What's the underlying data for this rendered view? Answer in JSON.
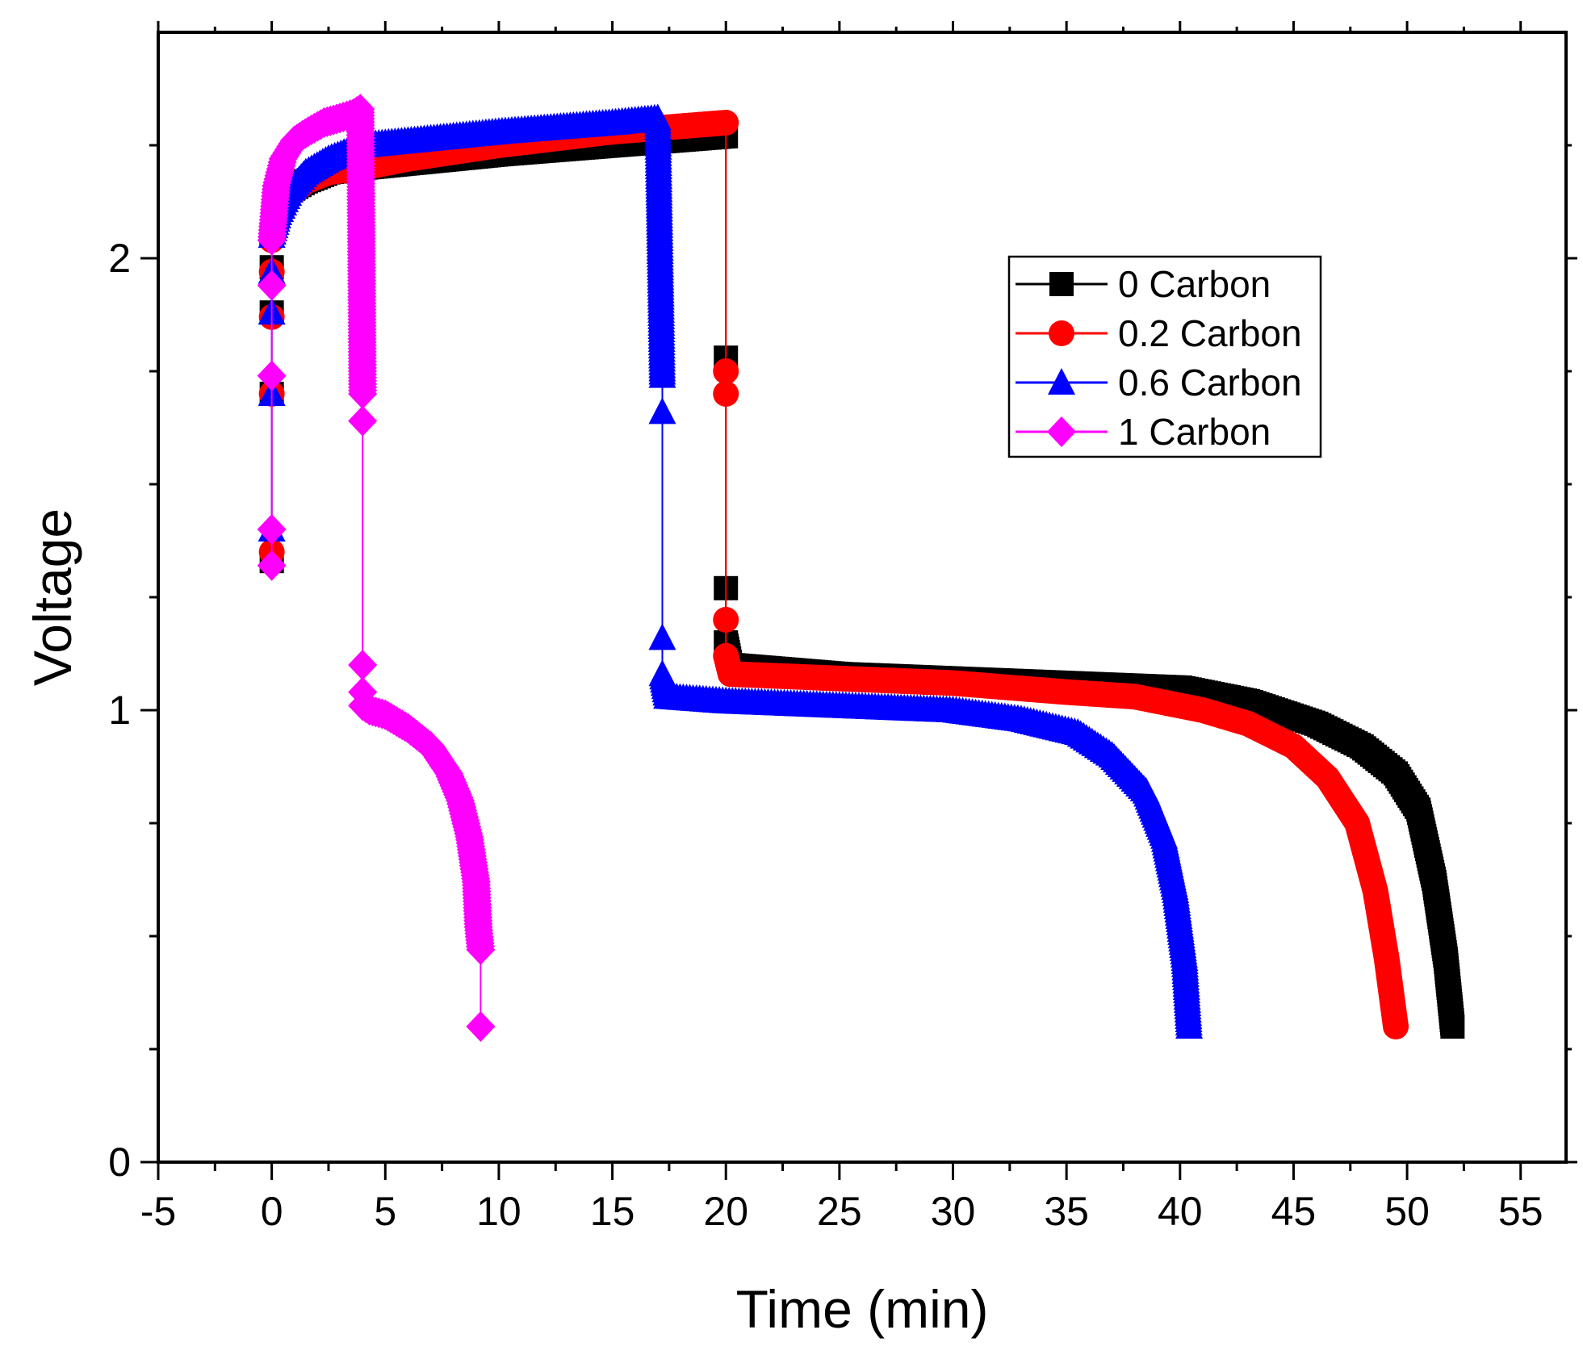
{
  "chart_data": {
    "type": "line",
    "title": "",
    "xlabel": "Time (min)",
    "ylabel": "Voltage",
    "xlim": [
      -5,
      57
    ],
    "ylim": [
      0,
      2.5
    ],
    "x_ticks": [
      -5,
      0,
      5,
      10,
      15,
      20,
      25,
      30,
      35,
      40,
      45,
      50,
      55
    ],
    "y_ticks": [
      0,
      1,
      2
    ],
    "x_tick_labels": [
      "-5",
      "0",
      "5",
      "10",
      "15",
      "20",
      "25",
      "30",
      "35",
      "40",
      "45",
      "50",
      "55"
    ],
    "y_tick_labels": [
      "0",
      "1",
      "2"
    ],
    "grid": false,
    "legend_position": "upper-right",
    "series": [
      {
        "name": "0 Carbon",
        "color": "#000000",
        "marker": "square",
        "x": [
          0,
          0,
          0,
          0,
          0,
          0.3,
          0.8,
          1.5,
          2.5,
          4,
          6,
          10,
          15,
          20,
          20,
          20,
          20,
          20.2,
          25,
          30,
          35,
          40,
          43,
          46,
          48,
          49.5,
          50.5,
          51.2,
          51.7,
          52
        ],
        "y": [
          1.33,
          1.7,
          1.88,
          1.98,
          2.05,
          2.12,
          2.15,
          2.17,
          2.19,
          2.2,
          2.21,
          2.23,
          2.25,
          2.27,
          1.78,
          1.27,
          1.15,
          1.1,
          1.08,
          1.07,
          1.06,
          1.05,
          1.02,
          0.97,
          0.92,
          0.86,
          0.78,
          0.62,
          0.45,
          0.3
        ]
      },
      {
        "name": "0.2 Carbon",
        "color": "#ff0000",
        "marker": "circle",
        "x": [
          0,
          0,
          0,
          0,
          0,
          0.3,
          0.8,
          1.5,
          2.5,
          4,
          6,
          10,
          15,
          20,
          20,
          20,
          20,
          20,
          20.2,
          25,
          30,
          35,
          38,
          41,
          43,
          45,
          46.5,
          47.8,
          48.6,
          49.1,
          49.5
        ],
        "y": [
          1.35,
          1.7,
          1.87,
          1.97,
          2.04,
          2.1,
          2.14,
          2.17,
          2.19,
          2.2,
          2.22,
          2.25,
          2.28,
          2.3,
          1.75,
          1.7,
          1.2,
          1.12,
          1.08,
          1.07,
          1.06,
          1.04,
          1.03,
          1.0,
          0.97,
          0.92,
          0.85,
          0.75,
          0.6,
          0.45,
          0.3
        ]
      },
      {
        "name": "0.6 Carbon",
        "color": "#0000ff",
        "marker": "triangle",
        "x": [
          0,
          0,
          0,
          0,
          0,
          0.3,
          0.8,
          1.5,
          2.5,
          4,
          6,
          10,
          15,
          17,
          17.2,
          17.2,
          17.2,
          17.2,
          17.4,
          20,
          25,
          30,
          33,
          35.5,
          37,
          38.5,
          39.3,
          39.8,
          40.2,
          40.4
        ],
        "y": [
          1.4,
          1.7,
          1.88,
          1.97,
          2.05,
          2.1,
          2.15,
          2.19,
          2.22,
          2.25,
          2.26,
          2.28,
          2.3,
          2.31,
          1.74,
          1.66,
          1.16,
          1.08,
          1.03,
          1.02,
          1.01,
          1.0,
          0.98,
          0.95,
          0.9,
          0.82,
          0.72,
          0.6,
          0.45,
          0.3
        ]
      },
      {
        "name": "1 Carbon",
        "color": "#ff00ff",
        "marker": "diamond",
        "x": [
          0,
          0,
          0,
          0,
          0,
          0.2,
          0.5,
          1,
          1.6,
          2.3,
          3,
          3.6,
          3.9,
          4,
          4,
          4,
          4,
          4,
          4.3,
          5,
          6,
          7,
          7.8,
          8.3,
          8.7,
          9,
          9.1,
          9.2,
          9.2
        ],
        "y": [
          1.32,
          1.4,
          1.74,
          1.94,
          2.04,
          2.16,
          2.22,
          2.26,
          2.28,
          2.3,
          2.31,
          2.32,
          2.33,
          1.7,
          1.64,
          1.1,
          1.04,
          1.01,
          1.0,
          0.99,
          0.96,
          0.92,
          0.86,
          0.8,
          0.72,
          0.62,
          0.52,
          0.47,
          0.3
        ]
      }
    ]
  }
}
